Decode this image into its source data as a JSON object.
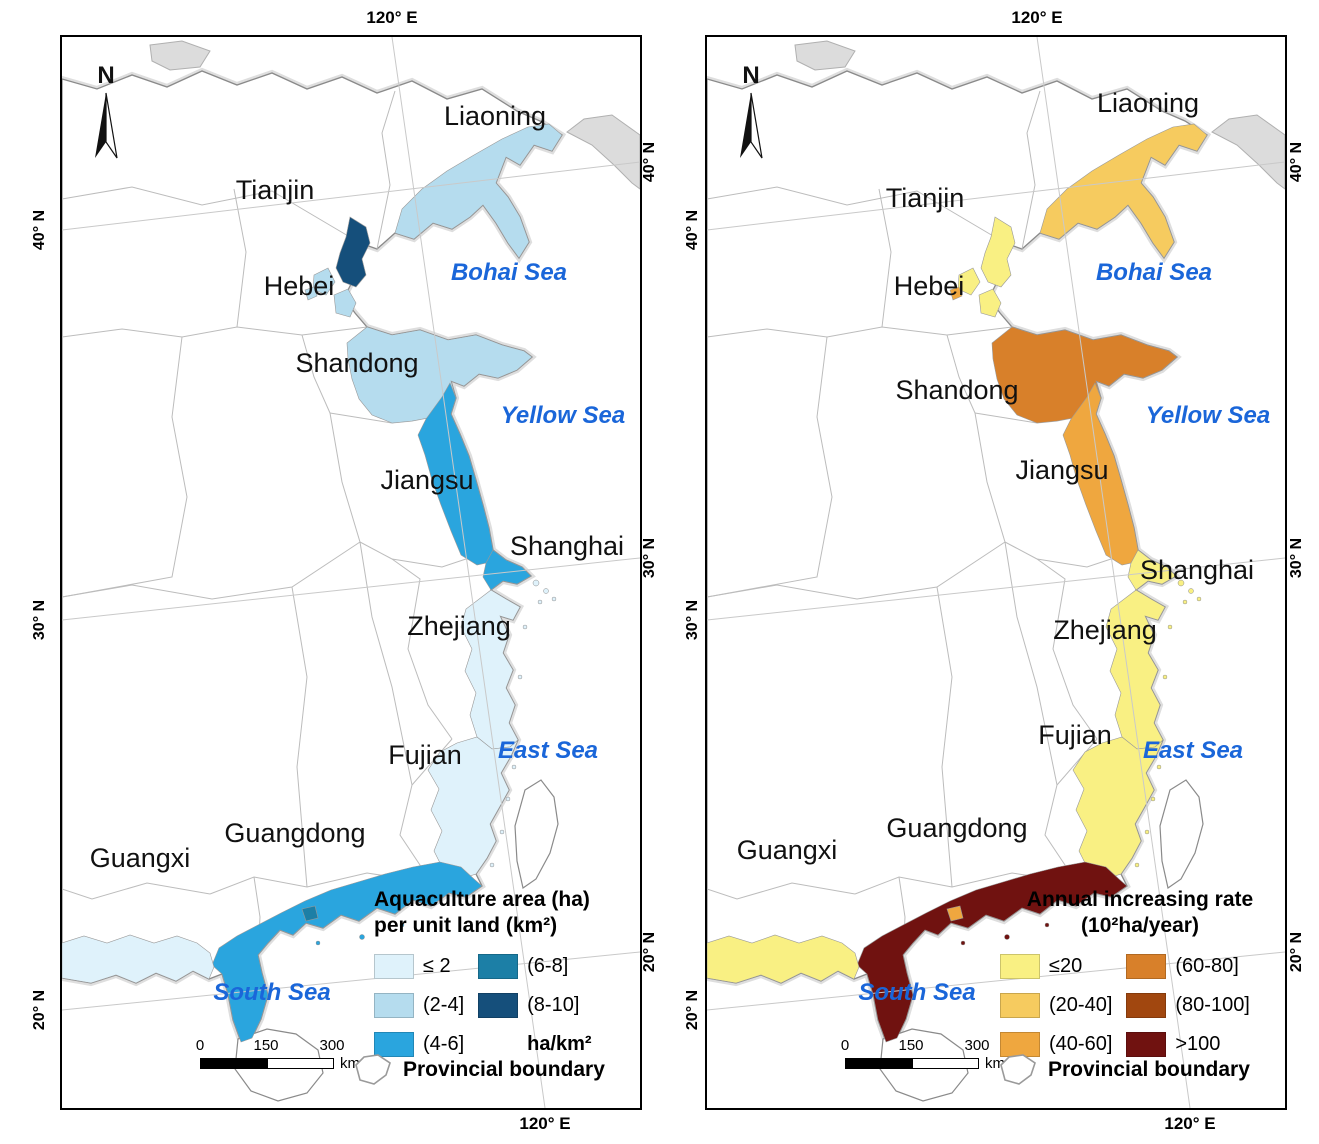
{
  "figure": {
    "panels": [
      {
        "name": "aquaculture-area-density",
        "north_label": "N",
        "grid": {
          "top": "120° E",
          "bottom": "120° E",
          "left": [
            "40° N",
            "30° N",
            "20° N"
          ],
          "right": [
            "40° N",
            "30° N",
            "20° N"
          ]
        },
        "provinces": [
          {
            "id": "liaoning",
            "label": "Liaoning",
            "fill": "#b5dcee"
          },
          {
            "id": "tianjin",
            "label": "Tianjin",
            "fill": "#154f7b"
          },
          {
            "id": "hebei",
            "label": "Hebei",
            "fill": "#b5dcee"
          },
          {
            "id": "shandong",
            "label": "Shandong",
            "fill": "#b5dcee"
          },
          {
            "id": "jiangsu",
            "label": "Jiangsu",
            "fill": "#2aa5de"
          },
          {
            "id": "shanghai",
            "label": "Shanghai",
            "fill": "#2aa5de"
          },
          {
            "id": "zhejiang",
            "label": "Zhejiang",
            "fill": "#dff2fb"
          },
          {
            "id": "fujian",
            "label": "Fujian",
            "fill": "#dff2fb"
          },
          {
            "id": "guangdong",
            "label": "Guangdong",
            "fill": "#2aa5de"
          },
          {
            "id": "guangxi",
            "label": "Guangxi",
            "fill": "#dff2fb"
          }
        ],
        "minor_fills": {
          "hebei_dot": "#b5dcee",
          "pearl_dot": "#1c7fa6"
        },
        "sea_color": "#1a66d9",
        "sea_labels": {
          "bohai": "Bohai Sea",
          "yellow": "Yellow Sea",
          "east": "East Sea",
          "south": "South Sea"
        },
        "legend": {
          "title_lines": [
            "Aquaculture area (ha)",
            "per unit land (km²)"
          ],
          "items_col1": [
            {
              "label": "≤ 2",
              "color": "#dff2fb"
            },
            {
              "label": "(2-4]",
              "color": "#b5dcee"
            },
            {
              "label": "(4-6]",
              "color": "#2aa5de"
            }
          ],
          "items_col2": [
            {
              "label": "(6-8]",
              "color": "#1c7fa6"
            },
            {
              "label": "(8-10]",
              "color": "#154f7b"
            },
            {
              "label": "ha/km²",
              "color": null
            }
          ],
          "boundary_label": "Provincial boundary"
        },
        "scalebar": {
          "ticks": [
            "0",
            "150",
            "300"
          ],
          "unit": "km"
        }
      },
      {
        "name": "annual-increasing-rate",
        "north_label": "N",
        "grid": {
          "top": "120° E",
          "bottom": "120° E",
          "left": [
            "40° N",
            "30° N",
            "20° N"
          ],
          "right": [
            "40° N",
            "30° N",
            "20° N"
          ]
        },
        "provinces": [
          {
            "id": "liaoning",
            "label": "Liaoning",
            "fill": "#f6cb5f"
          },
          {
            "id": "tianjin",
            "label": "Tianjin",
            "fill": "#f9f083"
          },
          {
            "id": "hebei",
            "label": "Hebei",
            "fill": "#f9f083"
          },
          {
            "id": "shandong",
            "label": "Shandong",
            "fill": "#d8802a"
          },
          {
            "id": "jiangsu",
            "label": "Jiangsu",
            "fill": "#efa73f"
          },
          {
            "id": "shanghai",
            "label": "Shanghai",
            "fill": "#f9f083"
          },
          {
            "id": "zhejiang",
            "label": "Zhejiang",
            "fill": "#f9f083"
          },
          {
            "id": "fujian",
            "label": "Fujian",
            "fill": "#f9f083"
          },
          {
            "id": "guangdong",
            "label": "Guangdong",
            "fill": "#701210"
          },
          {
            "id": "guangxi",
            "label": "Guangxi",
            "fill": "#f9f083"
          }
        ],
        "minor_fills": {
          "hebei_dot": "#efa73f",
          "pearl_dot": "#efa73f"
        },
        "sea_color": "#1a66d9",
        "sea_labels": {
          "bohai": "Bohai Sea",
          "yellow": "Yellow Sea",
          "east": "East Sea",
          "south": "South Sea"
        },
        "legend": {
          "title_lines": [
            "Annual increasing rate",
            "(10²ha/year)"
          ],
          "items_col1": [
            {
              "label": "≤20",
              "color": "#f9f083"
            },
            {
              "label": "(20-40]",
              "color": "#f6cb5f"
            },
            {
              "label": "(40-60]",
              "color": "#efa73f"
            }
          ],
          "items_col2": [
            {
              "label": "(60-80]",
              "color": "#d8802a"
            },
            {
              "label": "(80-100]",
              "color": "#a1470f"
            },
            {
              "label": ">100",
              "color": "#701210"
            }
          ],
          "boundary_label": "Provincial boundary"
        },
        "scalebar": {
          "ticks": [
            "0",
            "150",
            "300"
          ],
          "unit": "km"
        }
      }
    ]
  }
}
